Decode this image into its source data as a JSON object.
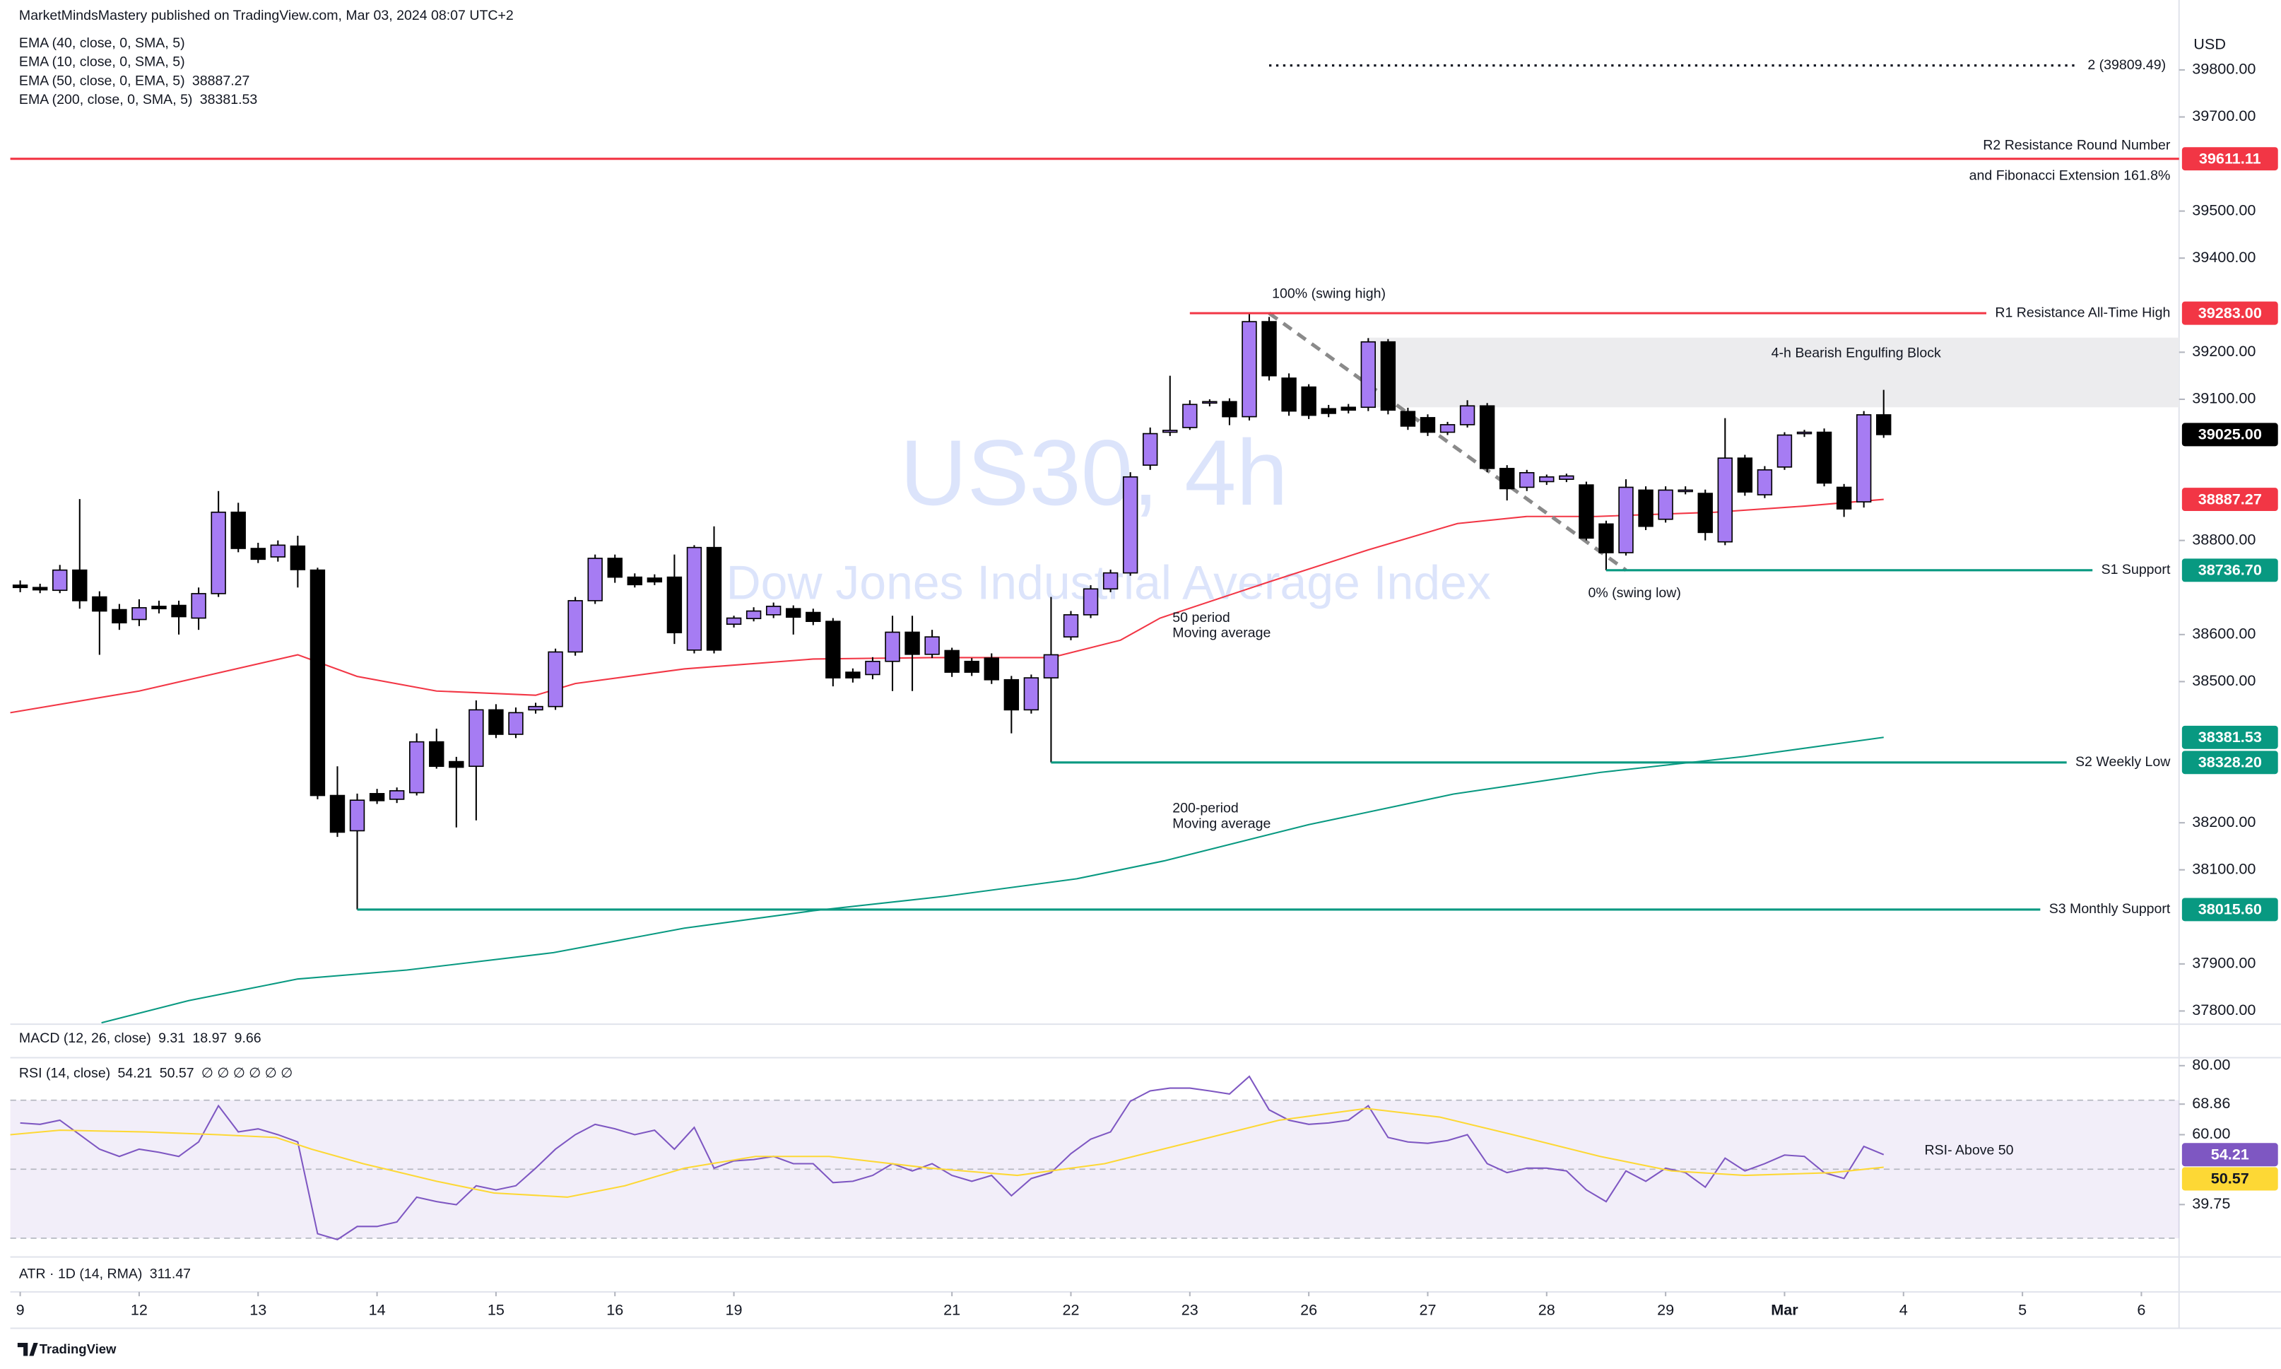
{
  "header": {
    "publisher": "MarketMindsMastery published on TradingView.com, Mar 03, 2024 08:07 UTC+2",
    "inactive_indicators": [
      "EMA (40, close, 0, SMA, 5)",
      "EMA (10, close, 0, SMA, 5)"
    ]
  },
  "macd": {
    "title": "MACD (12, 26, close)",
    "values": [
      9.31,
      18.97,
      9.66
    ],
    "colors": [
      "#089981",
      "#2962ff",
      "#ff6d00"
    ]
  },
  "atr": {
    "title": "ATR · 1D (14, RMA)",
    "value": 311.47,
    "color": "#f23645"
  },
  "footer": {
    "brand": "TradingView"
  },
  "chart_data": [
    {
      "type": "candlestick",
      "currency": "USD",
      "watermark": {
        "symbol": "US30, 4h",
        "description": "Dow Jones Industrial Average Index",
        "color": "#dce4fb"
      },
      "up_color": "#a67cf3",
      "down_color": "#000000",
      "xlim": [
        -0.5,
        108.9
      ],
      "xticks": [
        {
          "value": 0,
          "label": "9"
        },
        {
          "value": 6,
          "label": "12"
        },
        {
          "value": 12,
          "label": "13"
        },
        {
          "value": 18,
          "label": "14"
        },
        {
          "value": 24,
          "label": "15"
        },
        {
          "value": 30,
          "label": "16"
        },
        {
          "value": 36,
          "label": "19"
        },
        {
          "value": 47,
          "label": "21"
        },
        {
          "value": 53,
          "label": "22"
        },
        {
          "value": 59,
          "label": "23"
        },
        {
          "value": 65,
          "label": "26"
        },
        {
          "value": 71,
          "label": "27"
        },
        {
          "value": 77,
          "label": "28"
        },
        {
          "value": 83,
          "label": "29"
        },
        {
          "value": 89,
          "label": "Mar"
        },
        {
          "value": 95,
          "label": "4"
        },
        {
          "value": 101,
          "label": "5"
        },
        {
          "value": 107,
          "label": "6"
        }
      ],
      "ylim": [
        37775,
        39896
      ],
      "yticks": [
        {
          "value": 39800,
          "label": "39800.00"
        },
        {
          "value": 39700,
          "label": "39700.00"
        },
        {
          "value": 39500,
          "label": "39500.00"
        },
        {
          "value": 39400,
          "label": "39400.00"
        },
        {
          "value": 39200,
          "label": "39200.00"
        },
        {
          "value": 39100,
          "label": "39100.00"
        },
        {
          "value": 38800,
          "label": "38800.00"
        },
        {
          "value": 38600,
          "label": "38600.00"
        },
        {
          "value": 38500,
          "label": "38500.00"
        },
        {
          "value": 38200,
          "label": "38200.00"
        },
        {
          "value": 38100,
          "label": "38100.00"
        },
        {
          "value": 37900,
          "label": "37900.00"
        },
        {
          "value": 37800,
          "label": "37800.00"
        }
      ],
      "open": [
        38705,
        38700,
        38694,
        38737,
        38680,
        38653,
        38632,
        38660,
        38662,
        38635,
        38687,
        38860,
        38783,
        38765,
        38788,
        38737,
        38258,
        38183,
        38262,
        38250,
        38264,
        38372,
        38330,
        38320,
        38440,
        38388,
        38440,
        38447,
        38563,
        38672,
        38762,
        38722,
        38720,
        38722,
        38567,
        38785,
        38622,
        38634,
        38642,
        38655,
        38647,
        38628,
        38520,
        38515,
        38543,
        38605,
        38558,
        38566,
        38543,
        38550,
        38504,
        38440,
        38508,
        38595,
        38642,
        38697,
        38731,
        38960,
        39030,
        39040,
        39092,
        39095,
        39063,
        39265,
        39145,
        39126,
        39080,
        39083,
        39083,
        39222,
        39074,
        39061,
        39030,
        39046,
        39086,
        38953,
        38913,
        38925,
        38930,
        38918,
        38835,
        38774,
        38907,
        38845,
        38905,
        38900,
        38797,
        38975,
        38897,
        38956,
        39027,
        39030,
        38913,
        38882,
        39067
      ],
      "high": [
        38715,
        38708,
        38748,
        38888,
        38692,
        38665,
        38675,
        38672,
        38672,
        38700,
        38905,
        38880,
        38795,
        38800,
        38810,
        38742,
        38320,
        38262,
        38272,
        38275,
        38390,
        38400,
        38340,
        38460,
        38452,
        38445,
        38455,
        38570,
        38680,
        38770,
        38770,
        38730,
        38728,
        38770,
        38790,
        38830,
        38640,
        38658,
        38668,
        38662,
        38655,
        38635,
        38528,
        38552,
        38640,
        38640,
        38610,
        38572,
        38550,
        38560,
        38512,
        38515,
        38680,
        38650,
        38705,
        38738,
        38945,
        39040,
        39150,
        39098,
        39100,
        39102,
        39283,
        39275,
        39155,
        39132,
        39088,
        39090,
        39230,
        39228,
        39082,
        39068,
        39052,
        39098,
        39092,
        38960,
        38950,
        38940,
        38942,
        38925,
        38842,
        38930,
        38915,
        38915,
        38915,
        38908,
        39060,
        38982,
        38958,
        39030,
        39035,
        39038,
        38920,
        39075,
        39120
      ],
      "low": [
        38690,
        38688,
        38688,
        38655,
        38557,
        38610,
        38618,
        38645,
        38600,
        38610,
        38680,
        38775,
        38752,
        38755,
        38700,
        38250,
        38170,
        38015.6,
        38240,
        38242,
        38258,
        38315,
        38190,
        38205,
        38380,
        38380,
        38432,
        38440,
        38555,
        38665,
        38710,
        38700,
        38705,
        38580,
        38560,
        38560,
        38615,
        38628,
        38635,
        38600,
        38620,
        38490,
        38498,
        38505,
        38480,
        38480,
        38550,
        38510,
        38512,
        38495,
        38390,
        38432,
        38328.2,
        38588,
        38635,
        38690,
        38725,
        38950,
        39022,
        39035,
        39085,
        39045,
        39055,
        39140,
        39065,
        39058,
        39062,
        39070,
        39075,
        39068,
        39035,
        39022,
        39024,
        39040,
        38945,
        38885,
        38905,
        38918,
        38924,
        38800,
        38736.7,
        38768,
        38822,
        38838,
        38898,
        38800,
        38790,
        38895,
        38890,
        38950,
        39020,
        38915,
        38850,
        38870,
        39018
      ],
      "close": [
        38700,
        38695,
        38737,
        38672,
        38650,
        38625,
        38657,
        38655,
        38638,
        38687,
        38860,
        38783,
        38760,
        38790,
        38738,
        38258,
        38180,
        38248,
        38247,
        38268,
        38372,
        38320,
        38318,
        38440,
        38388,
        38434,
        38447,
        38563,
        38672,
        38762,
        38722,
        38706,
        38712,
        38604,
        38785,
        38567,
        38635,
        38650,
        38660,
        38637,
        38628,
        38508,
        38508,
        38543,
        38605,
        38558,
        38595,
        38520,
        38520,
        38504,
        38440,
        38508,
        38557,
        38642,
        38697,
        38731,
        38935,
        39027,
        39034,
        39089,
        39095,
        39063,
        39265,
        39150,
        39075,
        39066,
        39070,
        39077,
        39222,
        39077,
        39043,
        39030,
        39046,
        39086,
        38953,
        38910,
        38944,
        38935,
        38937,
        38805,
        38774,
        38913,
        38830,
        38907,
        38907,
        38817,
        38975,
        38903,
        38950,
        39024,
        39030,
        38922,
        38867,
        39067,
        39025
      ],
      "series": [
        {
          "name": "EMA (50, close, 0, EMA, 5)",
          "color": "#f23645",
          "label": [
            "50 period",
            "Moving average"
          ],
          "x": [
            -0.5,
            6,
            14,
            17,
            21,
            26,
            28,
            33.5,
            40,
            46,
            52,
            55.5,
            57.5,
            63,
            68,
            72.5,
            76,
            79.5,
            85.5,
            90,
            94
          ],
          "values": [
            38434,
            38480,
            38557,
            38511,
            38480,
            38471,
            38496,
            38527,
            38548,
            38551,
            38551,
            38588,
            38635,
            38712,
            38780,
            38836,
            38851,
            38851,
            38860,
            38873,
            38887.27
          ]
        },
        {
          "name": "EMA (200, close, 0, SMA, 5)",
          "color": "#089981",
          "label": [
            "200-period",
            "Moving average"
          ],
          "x": [
            4.1,
            8.5,
            14,
            19.5,
            26.9,
            33.5,
            40,
            46.7,
            53.3,
            57.7,
            65,
            72.3,
            79.7,
            87,
            94
          ],
          "values": [
            37775,
            37822,
            37868,
            37887,
            37924,
            37976,
            38013,
            38044,
            38081,
            38119,
            38196,
            38261,
            38307,
            38341,
            38381.53
          ]
        }
      ],
      "levels": [
        {
          "label": [
            "R2 Resistance Round Number",
            "and Fibonacci Extension 161.8%"
          ],
          "value": 39611.11,
          "color": "#f23645"
        },
        {
          "label": "R1 Resistance All-Time High",
          "value": 39283,
          "value_label": "39283.00",
          "x_start": 59,
          "color": "#f23645"
        },
        {
          "label": "S1 Support",
          "value": 38736.7,
          "value_label": "38736.70",
          "x_start": 80,
          "color": "#089981"
        },
        {
          "label": "S2 Weekly Low",
          "value": 38328.2,
          "value_label": "38328.20",
          "x_start": 52,
          "color": "#089981"
        },
        {
          "label": "S3 Monthly Support",
          "value": 38015.6,
          "value_label": "38015.60",
          "x_start": 17,
          "color": "#089981"
        }
      ],
      "target": {
        "label": "2 (39809.49)",
        "value": 39809.49,
        "x": [
          63,
          103.7
        ]
      },
      "fib": {
        "labels": [
          "100% (swing high)",
          "0% (swing low)"
        ],
        "x": [
          63,
          81
        ],
        "values": [
          39283,
          38736.7
        ]
      },
      "block": {
        "label": "4-h Bearish Engulfing Block",
        "x_start": 68,
        "values": [
          39231,
          39083
        ]
      },
      "last_price": {
        "value": 39025,
        "label": "39025.00"
      }
    },
    {
      "type": "line",
      "title": "RSI (14, close)",
      "empty_values": "∅ ∅ ∅ ∅ ∅ ∅",
      "annotation": "RSI- Above 50",
      "xlim": [
        -0.5,
        108.9
      ],
      "ylim": [
        25.4,
        81.9
      ],
      "yticks": [
        {
          "value": 80,
          "label": "80.00"
        },
        68.86,
        {
          "value": 60,
          "label": "60.00"
        },
        39.75
      ],
      "bands": [
        70,
        50,
        30
      ],
      "series": [
        {
          "color": "#7e57c2",
          "values": [
            63.4,
            63.0,
            64.2,
            60.0,
            55.8,
            53.7,
            55.8,
            54.9,
            53.7,
            57.9,
            68.4,
            60.8,
            61.7,
            60.0,
            57.9,
            31.3,
            29.6,
            33.4,
            33.4,
            34.7,
            41.9,
            40.6,
            39.7,
            45.2,
            44.0,
            45.2,
            50.3,
            55.8,
            60.0,
            63.0,
            61.7,
            60.0,
            61.3,
            55.8,
            62.1,
            50.3,
            52.4,
            52.8,
            53.7,
            51.6,
            51.6,
            46.1,
            46.5,
            48.2,
            51.6,
            49.5,
            51.6,
            48.2,
            46.5,
            48.2,
            42.3,
            47.3,
            49.0,
            54.5,
            58.7,
            60.8,
            69.7,
            72.7,
            73.5,
            73.5,
            72.7,
            71.8,
            76.9,
            67.2,
            64.2,
            63.0,
            63.4,
            64.2,
            68.4,
            59.2,
            57.9,
            57.5,
            58.3,
            60.0,
            51.6,
            49.0,
            50.3,
            50.3,
            49.5,
            44.0,
            40.6,
            49.5,
            46.5,
            50.3,
            49.0,
            44.8,
            53.2,
            49.5,
            51.6,
            54.1,
            53.7,
            49.0,
            47.3,
            56.6,
            54.21
          ]
        },
        {
          "color": "#fdd835",
          "x": [
            -0.5,
            2,
            6.3,
            10,
            12.9,
            14.7,
            17.3,
            21,
            23.9,
            27.6,
            30.5,
            33.5,
            37.1,
            40.8,
            45.9,
            50.3,
            54.7,
            59.1,
            63.5,
            67.9,
            71.6,
            75.3,
            79.7,
            83.3,
            87,
            91.4,
            94
          ],
          "values": [
            60.0,
            61.3,
            60.8,
            60.0,
            59.2,
            55.8,
            51.6,
            46.5,
            43.1,
            41.9,
            45.2,
            50.3,
            53.7,
            53.7,
            50.3,
            48.2,
            51.6,
            57.9,
            64.2,
            67.6,
            65.1,
            60.0,
            53.7,
            49.5,
            48.2,
            49.0,
            50.57
          ]
        }
      ]
    }
  ]
}
